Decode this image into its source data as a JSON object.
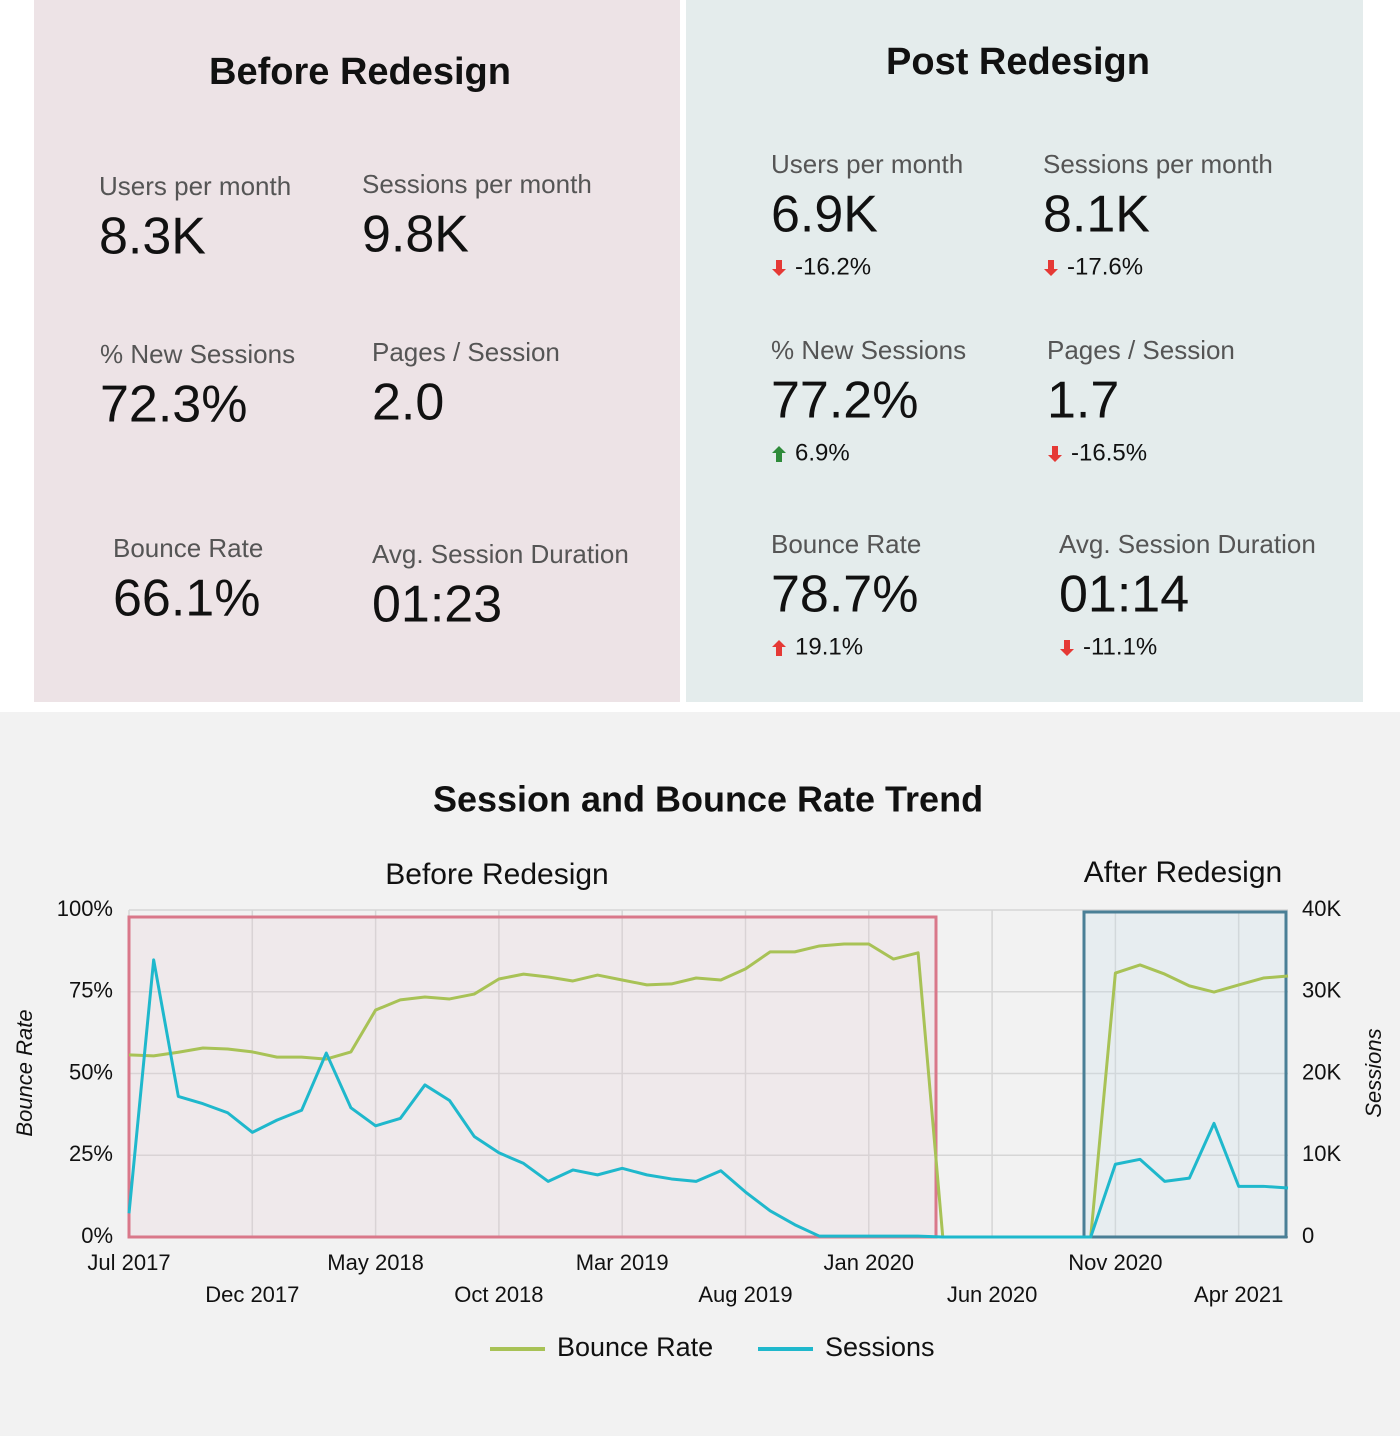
{
  "panels": [
    {
      "title": "Before Redesign",
      "metrics": [
        {
          "label": "Users per month",
          "value": "8.3K"
        },
        {
          "label": "Sessions per month",
          "value": "9.8K"
        },
        {
          "label": "% New Sessions",
          "value": "72.3%"
        },
        {
          "label": "Pages / Session",
          "value": "2.0"
        },
        {
          "label": "Bounce Rate",
          "value": "66.1%"
        },
        {
          "label": "Avg. Session Duration",
          "value": "01:23"
        }
      ]
    },
    {
      "title": "Post Redesign",
      "metrics": [
        {
          "label": "Users per month",
          "value": "6.9K",
          "change": "-16.2%",
          "change_color": "#e53935"
        },
        {
          "label": "Sessions per month",
          "value": "8.1K",
          "change": "-17.6%",
          "change_color": "#e53935"
        },
        {
          "label": "% New Sessions",
          "value": "77.2%",
          "change": "6.9%",
          "change_color": "#2e8b3a"
        },
        {
          "label": "Pages / Session",
          "value": "1.7",
          "change": "-16.5%",
          "change_color": "#e53935"
        },
        {
          "label": "Bounce Rate",
          "value": "78.7%",
          "change": "19.1%",
          "change_color": "#e53935"
        },
        {
          "label": "Avg. Session Duration",
          "value": "01:14",
          "change": "-11.1%",
          "change_color": "#e53935"
        }
      ]
    }
  ],
  "chart_data": {
    "type": "line",
    "title": "Session and Bounce Rate Trend",
    "y_label": "Bounce Rate",
    "y2_label": "Sessions",
    "annotations": [
      {
        "text": "Before Redesign",
        "color": "#c8435e",
        "box_color": "#d9788a"
      },
      {
        "text": "After Redesign",
        "color": "#4e87a0",
        "box_color": "#4a7f96"
      }
    ],
    "categories": [
      "Jul 2017",
      null,
      null,
      null,
      null,
      "Dec 2017",
      null,
      null,
      null,
      null,
      "May 2018",
      null,
      null,
      null,
      null,
      "Oct 2018",
      null,
      null,
      null,
      null,
      "Mar 2019",
      null,
      null,
      null,
      null,
      "Aug 2019",
      null,
      null,
      null,
      null,
      "Jan 2020",
      null,
      null,
      null,
      null,
      "Jun 2020",
      null,
      null,
      null,
      null,
      "Nov 2020",
      null,
      null,
      null,
      null,
      "Apr 2021",
      null,
      null
    ],
    "series": [
      {
        "name": "Bounce Rate",
        "color": "#a8c256",
        "values": [
          55.7,
          55.4,
          56.5,
          57.8,
          57.5,
          56.6,
          55.0,
          55.0,
          54.4,
          56.6,
          69.4,
          72.5,
          73.4,
          72.8,
          74.3,
          78.9,
          80.4,
          79.5,
          78.3,
          80.1,
          78.6,
          77.1,
          77.4,
          79.2,
          78.6,
          82.0,
          87.2,
          87.2,
          89.0,
          89.6,
          89.6,
          85.0,
          86.9,
          0,
          0,
          0,
          0,
          0,
          0,
          0,
          80.7,
          83.2,
          80.4,
          76.8,
          74.9,
          77.1,
          79.2,
          79.8
        ]
      },
      {
        "name": "Sessions",
        "color": "#1fb8cc",
        "axis": "y2",
        "values": [
          2900,
          33900,
          17200,
          16300,
          15200,
          12800,
          14300,
          15500,
          22500,
          15800,
          13600,
          14500,
          18600,
          16700,
          12300,
          10300,
          9000,
          6800,
          8200,
          7600,
          8400,
          7600,
          7100,
          6800,
          8100,
          5500,
          3200,
          1500,
          100,
          100,
          100,
          100,
          100,
          0,
          0,
          0,
          0,
          0,
          0,
          0,
          8900,
          9500,
          6800,
          7200,
          13900,
          6200,
          6200,
          6000
        ]
      }
    ],
    "ylim": [
      0,
      100
    ],
    "yticks": [
      {
        "value": 0,
        "label": "0%"
      },
      {
        "value": 25,
        "label": "25%"
      },
      {
        "value": 50,
        "label": "50%"
      },
      {
        "value": 75,
        "label": "75%"
      },
      {
        "value": 100,
        "label": "100%"
      }
    ],
    "y2lim": [
      0,
      40000
    ],
    "y2ticks": [
      0,
      {
        "value": 10000,
        "label": "10K"
      },
      {
        "value": 20000,
        "label": "20K"
      },
      {
        "value": 30000,
        "label": "30K"
      },
      {
        "value": 40000,
        "label": "40K"
      }
    ],
    "grid": true
  }
}
